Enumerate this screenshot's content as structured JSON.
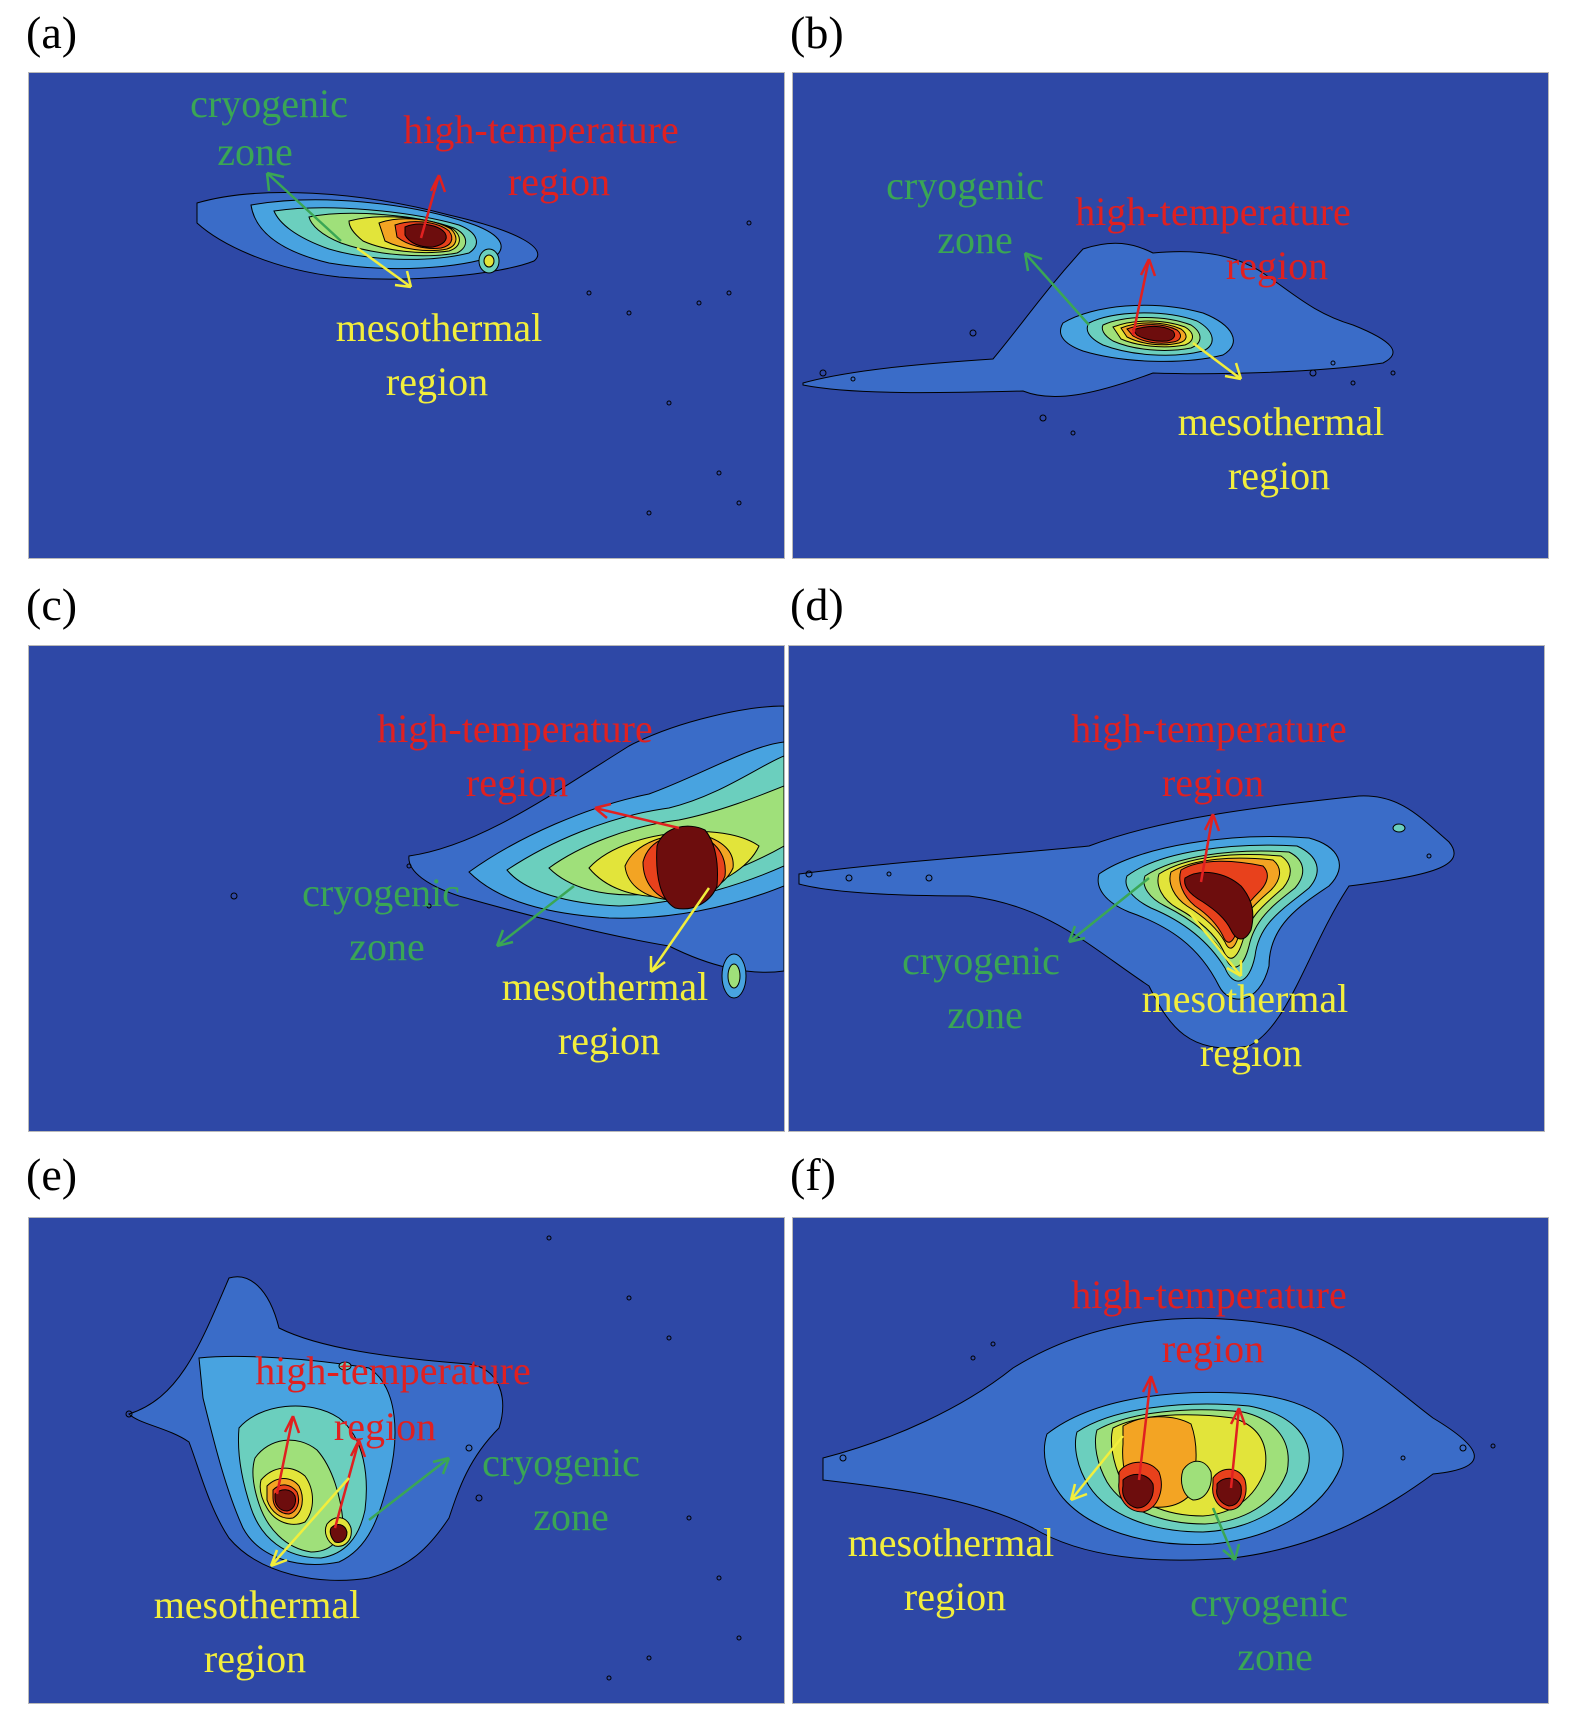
{
  "colors": {
    "background": "#2e48a6",
    "contour_levels": [
      "#2e48a6",
      "#3a6cc8",
      "#48a3e0",
      "#6bcfbe",
      "#9fe07a",
      "#e2e43a",
      "#f3a423",
      "#e8411c",
      "#d01a12",
      "#6d0d0d"
    ],
    "cryogenic": "#3aa655",
    "high_temperature": "#e02020",
    "mesothermal": "#f2ee3c"
  },
  "panels": [
    {
      "label": "(a)",
      "annotations": {
        "cryogenic": [
          "cryogenic",
          "zone"
        ],
        "high_temperature": [
          "high-temperature",
          "region"
        ],
        "mesothermal": [
          "mesothermal",
          "region"
        ]
      }
    },
    {
      "label": "(b)",
      "annotations": {
        "cryogenic": [
          "cryogenic",
          "zone"
        ],
        "high_temperature": [
          "high-temperature",
          "region"
        ],
        "mesothermal": [
          "mesothermal",
          "region"
        ]
      }
    },
    {
      "label": "(c)",
      "annotations": {
        "cryogenic": [
          "cryogenic",
          "zone"
        ],
        "high_temperature": [
          "high-temperature",
          "region"
        ],
        "mesothermal": [
          "mesothermal",
          "region"
        ]
      }
    },
    {
      "label": "(d)",
      "annotations": {
        "cryogenic": [
          "cryogenic",
          "zone"
        ],
        "high_temperature": [
          "high-temperature",
          "region"
        ],
        "mesothermal": [
          "mesothermal",
          "region"
        ]
      }
    },
    {
      "label": "(e)",
      "annotations": {
        "cryogenic": [
          "cryogenic",
          "zone"
        ],
        "high_temperature": [
          "high-temperature",
          "region"
        ],
        "mesothermal": [
          "mesothermal",
          "region"
        ]
      }
    },
    {
      "label": "(f)",
      "annotations": {
        "cryogenic": [
          "cryogenic",
          "zone"
        ],
        "high_temperature": [
          "high-temperature",
          "region"
        ],
        "mesothermal": [
          "mesothermal",
          "region"
        ]
      }
    }
  ]
}
